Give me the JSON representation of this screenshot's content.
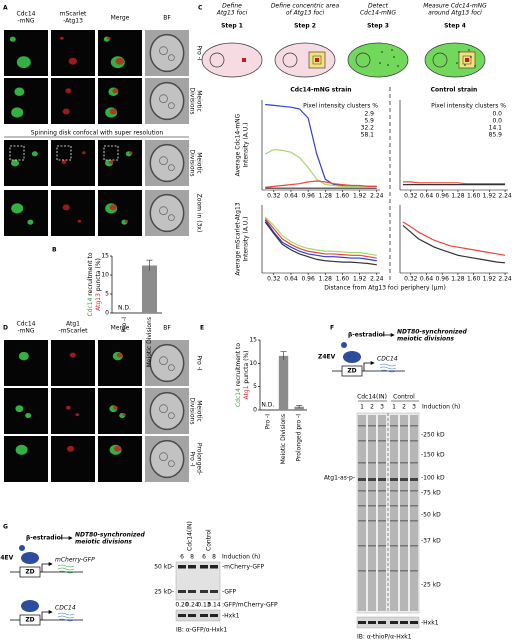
{
  "figure": {
    "panel_labels": [
      "A",
      "B",
      "C",
      "D",
      "E",
      "F",
      "G"
    ],
    "a": {
      "headers": [
        {
          "lines": [
            "Cdc14",
            "-mNG"
          ],
          "color": "#2e9e3e"
        },
        {
          "lines": [
            "mScarlet",
            "-Atg13"
          ],
          "color": "#d62728"
        },
        {
          "lines": [
            "Merge"
          ],
          "color": "#000000"
        },
        {
          "lines": [
            "BF"
          ],
          "color": "#000000"
        }
      ],
      "rows": [
        [
          "Pro -I"
        ],
        [
          "Meiotic",
          "Divisions"
        ],
        [
          "Meiotic",
          "Divisions"
        ],
        [
          "Zoom in (3x)"
        ]
      ],
      "section": "Spinning disk confocal with super resolution"
    },
    "c": {
      "steps": [
        {
          "desc": [
            "Define",
            "Atg13 foci"
          ],
          "title": "Step 1"
        },
        {
          "desc": [
            "Define concentric area",
            "of Atg13 foci"
          ],
          "title": "Step 2"
        },
        {
          "desc": [
            "Detect",
            "Cdc14-mNG"
          ],
          "title": "Step 3"
        },
        {
          "desc": [
            "Measure Cdc14-mNG",
            "around Atg13 foci"
          ],
          "title": "Step 4"
        }
      ]
    },
    "d": {
      "headers": [
        {
          "lines": [
            "Cdc14",
            "-mNG"
          ],
          "color": "#2e9e3e"
        },
        {
          "lines": [
            "Atg1",
            "-mScarlet"
          ],
          "color": "#d62728"
        },
        {
          "lines": [
            "Merge"
          ],
          "color": "#000000"
        },
        {
          "lines": [
            "BF"
          ],
          "color": "#000000"
        }
      ],
      "rows": [
        [
          "Pro -I"
        ],
        [
          "Meiotic",
          "Divisions"
        ],
        [
          "Prolonged-",
          "Pro -I"
        ]
      ]
    },
    "f": {
      "beta": "β-estradiol",
      "outcome": [
        "NDT80-synchronized",
        "meiotic divisions"
      ],
      "z4ev": "Z4EV",
      "zd": "ZD",
      "gene": "CDC14",
      "groups": [
        "Cdc14(IN)",
        "Control"
      ],
      "lanes": [
        1,
        2,
        3,
        1,
        2,
        3
      ],
      "induction": "Induction (h)",
      "markers": [
        "-250 kD",
        "-150 kD",
        "-100 kD",
        "-75 kD",
        "-50 kD",
        "-37 kD",
        "-25 kD"
      ],
      "band": "Atg1-as-p-",
      "loading": "-Hxk1",
      "ib": "IB: α-thioP/α-Hxk1"
    },
    "g": {
      "beta": "β-estradiol",
      "outcome": [
        "NDT80-synchronized",
        "meiotic divisions"
      ],
      "z4ev": "Z4EV",
      "zd": [
        "ZD",
        "ZD"
      ],
      "reporter": "mCherry-GFP",
      "gene": "CDC14",
      "groups": [
        "Cdc14(IN)",
        "Control"
      ],
      "lanes": [
        6,
        8,
        6,
        8
      ],
      "induction": "Induction (h)",
      "markers": [
        "50 kD-",
        "25 kD-"
      ],
      "bands": [
        "-mCherry-GFP",
        "-GFP"
      ],
      "ratios": [
        "0.20",
        "0.24",
        "0.13",
        "0.14"
      ],
      "ratio_label": ":GFP/mCherry-GFP",
      "loading": "-Hxk1",
      "ib": "IB: α-GFP/α-Hxk1"
    }
  },
  "chart_data": [
    {
      "type": "bar",
      "categories": [
        "Pro -I",
        "Meiotic Divisions"
      ],
      "values": [
        null,
        12.5
      ],
      "errors": [
        null,
        1.4
      ],
      "value_labels": [
        "N.D.",
        null
      ],
      "color": "#8c8c8c",
      "ylabel": [
        [
          {
            "text": "Cdc14",
            "color": "#2e9e3e"
          },
          {
            "text": " recruitment to",
            "color": "#000000"
          }
        ],
        [
          {
            "text": "Atg13",
            "color": "#d62728"
          },
          {
            "text": " puncta (%)",
            "color": "#000000"
          }
        ]
      ],
      "ylim": [
        0,
        15
      ],
      "yticks": [
        0,
        5,
        10,
        15
      ]
    },
    {
      "type": "bar",
      "categories": [
        "Pro -I",
        "Meiotic Divisions",
        "Prolonged pro -I"
      ],
      "values": [
        null,
        11.6,
        0.7
      ],
      "errors": [
        null,
        0.9,
        0.3
      ],
      "value_labels": [
        "N.D.",
        null,
        null
      ],
      "color": "#8c8c8c",
      "ylabel": [
        [
          {
            "text": "Cdc14",
            "color": "#2e9e3e"
          },
          {
            "text": " recruitment to",
            "color": "#000000"
          }
        ],
        [
          {
            "text": "Atg1",
            "color": "#d62728"
          },
          {
            "text": " puncta (%)",
            "color": "#000000"
          }
        ]
      ],
      "ylim": [
        0,
        15
      ],
      "yticks": [
        0,
        5,
        10,
        15
      ]
    },
    {
      "type": "line",
      "title": "Cdc14-mNG strain",
      "ylabel": [
        "Average Cdc14-mNG",
        "Intensity (A.U.)"
      ],
      "legend_title": "Pixel intensity clusters %",
      "x": [
        0.16,
        0.32,
        0.48,
        0.64,
        0.8,
        0.96,
        1.12,
        1.28,
        1.44,
        1.6,
        1.76,
        1.92,
        2.08,
        2.24
      ],
      "xlim": [
        0.1,
        2.3
      ],
      "xticks": [
        0.32,
        0.64,
        0.96,
        1.28,
        {
          "value": 1.6,
          "label": "1.60"
        },
        1.92,
        2.24
      ],
      "ylim": [
        0,
        100
      ],
      "series": [
        {
          "color": "#2b3fd6",
          "percent": 2.9,
          "values": [
            95,
            94,
            93,
            92,
            90,
            80,
            40,
            12,
            6,
            5,
            5,
            4,
            4,
            4
          ]
        },
        {
          "color": "#a6d96a",
          "percent": 5.9,
          "values": [
            40,
            45,
            44,
            42,
            36,
            25,
            12,
            6,
            5,
            4,
            4,
            4,
            4,
            4
          ]
        },
        {
          "color": "#e8473a",
          "percent": 32.2,
          "values": [
            3,
            4,
            5,
            6,
            7,
            9,
            10,
            9,
            7,
            6,
            5,
            5,
            4,
            4
          ]
        },
        {
          "color": "#333333",
          "percent": 58.1,
          "values": [
            2,
            2,
            2,
            2,
            2,
            2,
            2,
            2,
            2,
            2,
            2,
            2,
            2,
            2
          ]
        }
      ]
    },
    {
      "type": "line",
      "title": "Control strain",
      "legend_title": "Pixel intensity clusters %",
      "x": [
        0.16,
        0.32,
        0.48,
        0.64,
        0.8,
        0.96,
        1.12,
        1.28,
        1.44,
        1.6,
        1.76,
        1.92,
        2.08,
        2.24
      ],
      "xlim": [
        0.1,
        2.3
      ],
      "xticks": [
        0.32,
        0.64,
        0.96,
        1.28,
        {
          "value": 1.6,
          "label": "1.60"
        },
        1.92,
        2.24
      ],
      "ylim": [
        0,
        100
      ],
      "series": [
        {
          "color": "#2b3fd6",
          "percent": {
            "value": 0,
            "label": "0.0"
          },
          "values": [
            null,
            null,
            null,
            null,
            null,
            null,
            null,
            null,
            null,
            null,
            null,
            null,
            null,
            null
          ]
        },
        {
          "color": "#a6d96a",
          "percent": {
            "value": 0,
            "label": "0.0"
          },
          "values": [
            null,
            null,
            null,
            null,
            null,
            null,
            null,
            null,
            null,
            null,
            null,
            null,
            null,
            null
          ]
        },
        {
          "color": "#e8473a",
          "percent": 14.1,
          "values": [
            9,
            9,
            8,
            8,
            8,
            8,
            8,
            8,
            7,
            7,
            7,
            7,
            7,
            7
          ]
        },
        {
          "color": "#333333",
          "percent": 85.9,
          "values": [
            6,
            6,
            6,
            6,
            6,
            6,
            6,
            6,
            6,
            6,
            6,
            6,
            6,
            6
          ]
        }
      ]
    },
    {
      "type": "line",
      "ylabel": [
        "Average mScarlet-Atg13",
        "Intensity (A.U.)"
      ],
      "xlabel": "Distance from Atg13 foci periphery (μm)",
      "x": [
        0.16,
        0.32,
        0.48,
        0.64,
        0.8,
        0.96,
        1.12,
        1.28,
        1.44,
        1.6,
        1.76,
        1.92,
        2.08,
        2.24
      ],
      "xlim": [
        0.1,
        2.3
      ],
      "xticks": [
        0.32,
        0.64,
        0.96,
        1.28,
        {
          "value": 1.6,
          "label": "1.60"
        },
        1.92,
        2.24
      ],
      "ylim": [
        0,
        100
      ],
      "series": [
        {
          "color": "#2b3fd6",
          "values": [
            78,
            60,
            45,
            38,
            32,
            28,
            26,
            24,
            24,
            23,
            22,
            22,
            20,
            18
          ]
        },
        {
          "color": "#a6d96a",
          "values": [
            82,
            70,
            55,
            46,
            40,
            36,
            34,
            32,
            32,
            31,
            30,
            30,
            28,
            26
          ]
        },
        {
          "color": "#e8473a",
          "values": [
            80,
            65,
            50,
            42,
            36,
            32,
            30,
            28,
            28,
            27,
            26,
            26,
            24,
            22
          ]
        },
        {
          "color": "#333333",
          "values": [
            75,
            58,
            42,
            34,
            28,
            24,
            20,
            18,
            17,
            16,
            16,
            15,
            14,
            12
          ]
        }
      ]
    },
    {
      "type": "line",
      "x": [
        0.16,
        0.32,
        0.48,
        0.64,
        0.8,
        0.96,
        1.12,
        1.28,
        1.44,
        1.6,
        1.76,
        1.92,
        2.08,
        2.24
      ],
      "xlim": [
        0.1,
        2.3
      ],
      "xticks": [
        0.32,
        0.64,
        0.96,
        1.28,
        {
          "value": 1.6,
          "label": "1.60"
        },
        1.92,
        2.24
      ],
      "ylim": [
        0,
        100
      ],
      "series": [
        {
          "color": "#e8473a",
          "values": [
            75,
            68,
            60,
            54,
            48,
            44,
            40,
            38,
            36,
            34,
            32,
            30,
            28,
            26
          ]
        },
        {
          "color": "#333333",
          "values": [
            70,
            60,
            50,
            44,
            38,
            34,
            30,
            26,
            24,
            22,
            20,
            18,
            16,
            15
          ]
        }
      ]
    }
  ]
}
